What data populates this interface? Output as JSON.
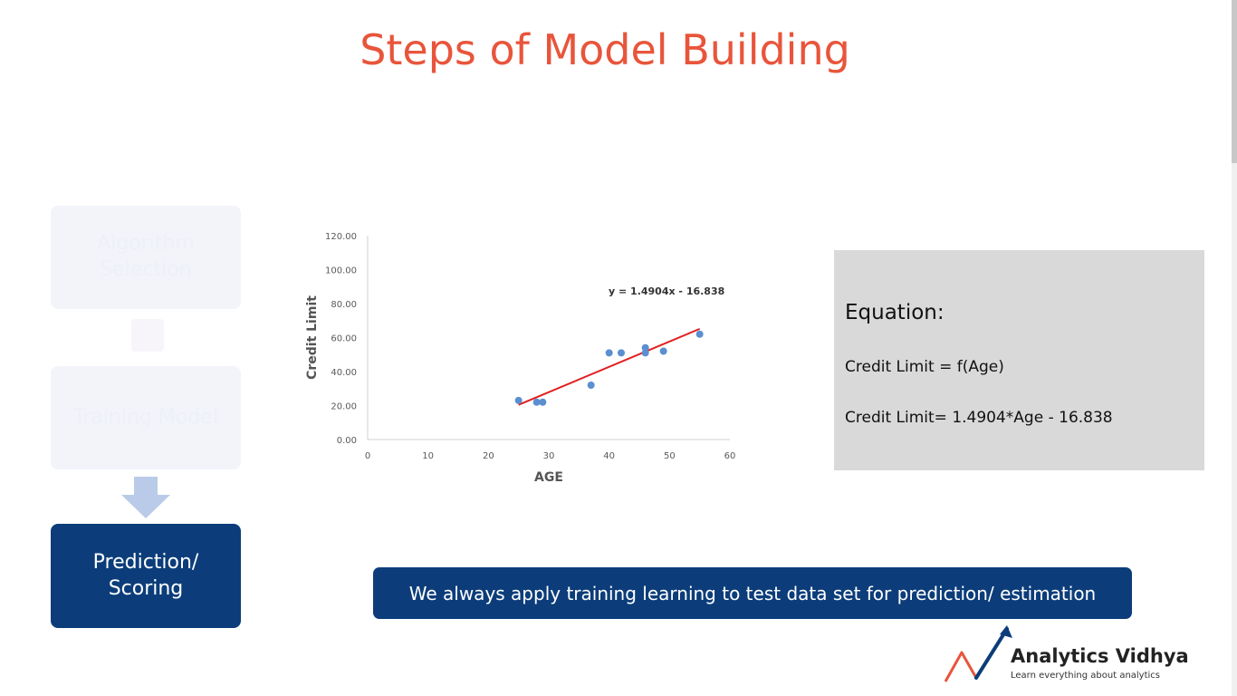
{
  "slide": {
    "title": "Steps of Model Building"
  },
  "steps": [
    {
      "label": "Algorithm\nSelection",
      "state": "faded"
    },
    {
      "label": "Training Model",
      "state": "faded"
    },
    {
      "label": "Prediction/\nScoring",
      "state": "active"
    }
  ],
  "colors": {
    "title": "#e8553b",
    "accent": "#0c3d7a",
    "trendline": "#e02020",
    "points": "#5b8fd0",
    "arrow": "#b9cbe8"
  },
  "chart_data": {
    "type": "scatter",
    "xlabel": "AGE",
    "ylabel": "Credit Limit",
    "xlim": [
      0,
      60
    ],
    "ylim": [
      0,
      120
    ],
    "x_ticks": [
      "0",
      "10",
      "20",
      "30",
      "40",
      "50",
      "60"
    ],
    "y_ticks": [
      "0.00",
      "20.00",
      "40.00",
      "60.00",
      "80.00",
      "100.00",
      "120.00"
    ],
    "grid": false,
    "points": [
      {
        "x": 25,
        "y": 23
      },
      {
        "x": 28,
        "y": 22
      },
      {
        "x": 29,
        "y": 22
      },
      {
        "x": 37,
        "y": 32
      },
      {
        "x": 40,
        "y": 51
      },
      {
        "x": 42,
        "y": 51
      },
      {
        "x": 46,
        "y": 51
      },
      {
        "x": 46,
        "y": 54
      },
      {
        "x": 49,
        "y": 52
      },
      {
        "x": 55,
        "y": 62
      }
    ],
    "trendline": {
      "slope": 1.4904,
      "intercept": -16.838,
      "x_range": [
        25,
        55
      ],
      "label": "y = 1.4904x - 16.838"
    }
  },
  "equation": {
    "heading": "Equation:",
    "line1": "Credit Limit = f(Age)",
    "line2": "Credit Limit= 1.4904*Age - 16.838"
  },
  "banner": {
    "text": "We always apply training learning to test data set for prediction/ estimation"
  },
  "logo": {
    "name": "Analytics Vidhya",
    "tagline": "Learn everything about analytics"
  }
}
